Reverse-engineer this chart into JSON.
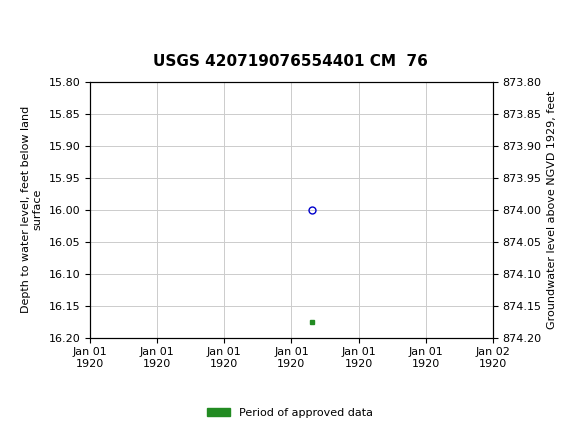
{
  "title": "USGS 420719076554401 CM  76",
  "header_color": "#1a6b3c",
  "ylabel_left": "Depth to water level, feet below land\nsurface",
  "ylabel_right": "Groundwater level above NGVD 1929, feet",
  "ylim_left": [
    15.8,
    16.2
  ],
  "ylim_right": [
    873.8,
    874.2
  ],
  "left_ticks": [
    15.8,
    15.85,
    15.9,
    15.95,
    16.0,
    16.05,
    16.1,
    16.15,
    16.2
  ],
  "right_ticks": [
    874.2,
    874.15,
    874.1,
    874.05,
    874.0,
    873.95,
    873.9,
    873.85,
    873.8
  ],
  "data_point_x": 3.3,
  "data_point_y": 16.0,
  "data_point_color": "#0000cc",
  "data_point_markersize": 5,
  "green_square_x": 3.3,
  "green_square_y": 16.175,
  "green_square_color": "#228B22",
  "xmin": 0,
  "xmax": 6,
  "xtick_positions": [
    0,
    1,
    2,
    3,
    4,
    5,
    6
  ],
  "xtick_labels": [
    "Jan 01\n1920",
    "Jan 01\n1920",
    "Jan 01\n1920",
    "Jan 01\n1920",
    "Jan 01\n1920",
    "Jan 01\n1920",
    "Jan 02\n1920"
  ],
  "grid_color": "#cccccc",
  "background_color": "#ffffff",
  "legend_label": "Period of approved data",
  "legend_color": "#228B22",
  "font_name": "Courier New",
  "title_fontsize": 11,
  "axis_label_fontsize": 8,
  "tick_fontsize": 8
}
